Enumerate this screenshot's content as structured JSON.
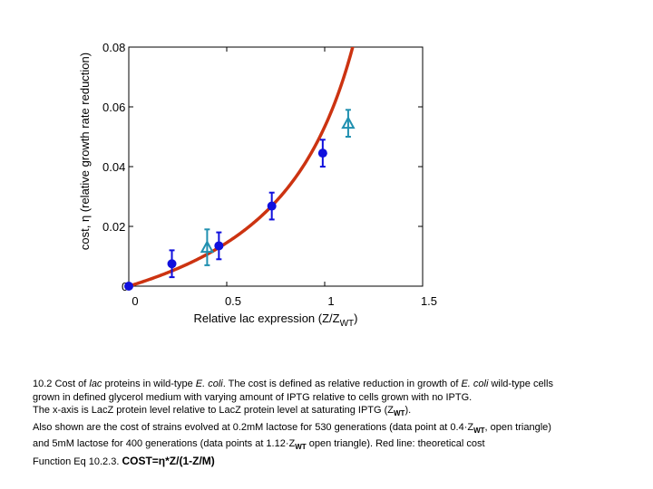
{
  "chart_data": {
    "type": "scatter",
    "title": "",
    "xlabel_main": "Relative lac expression (Z/Z",
    "xlabel_sub": "WT",
    "xlabel_end": ")",
    "ylabel": "cost, η (relative growth rate reduction)",
    "xlim": [
      0,
      1.5
    ],
    "ylim": [
      0,
      0.08
    ],
    "x_ticks": [
      "0",
      "0.5",
      "1",
      "1.5"
    ],
    "y_ticks": [
      "0",
      "0.02",
      "0.04",
      "0.06",
      "0.08"
    ],
    "grid": false,
    "series": [
      {
        "name": "wild-type",
        "marker": "circle",
        "color": "#1010dd",
        "points": [
          {
            "x": 0.0,
            "y": 0.0,
            "err": 0.0
          },
          {
            "x": 0.22,
            "y": 0.0075,
            "err": 0.0045
          },
          {
            "x": 0.46,
            "y": 0.0135,
            "err": 0.0045
          },
          {
            "x": 0.73,
            "y": 0.0268,
            "err": 0.0045
          },
          {
            "x": 0.99,
            "y": 0.0445,
            "err": 0.0045
          }
        ]
      },
      {
        "name": "evolved",
        "marker": "open-triangle",
        "color": "#2090b0",
        "points": [
          {
            "x": 0.4,
            "y": 0.013,
            "err": 0.006
          },
          {
            "x": 1.12,
            "y": 0.0545,
            "err": 0.0045
          }
        ]
      },
      {
        "name": "theoretical cost",
        "marker": "line",
        "color": "#cc3311",
        "formula": "eta*Z/(1-Z/M)",
        "params": {
          "eta": 0.02,
          "M": 1.6
        }
      }
    ]
  },
  "caption": {
    "l1_a": "10.2 Cost of ",
    "l1_b": "lac",
    "l1_c": " proteins in wild-type ",
    "l1_d": "E. coli",
    "l1_e": ".  The cost is defined as relative reduction in growth of ",
    "l1_f": "E. coli",
    "l1_g": " wild-type cells",
    "l2": "grown in defined glycerol medium with varying amount of IPTG relative to cells grown with no IPTG.",
    "l3_a": "The x-axis is LacZ protein level relative to LacZ protein level at saturating IPTG (Z",
    "l3_sub": "WT",
    "l3_b": ").",
    "l4_a": " Also shown are the cost of strains evolved at 0.2mM lactose for 530 generations (data point at 0.4·Z",
    "l4_sub": "WT",
    "l4_b": ", open triangle)",
    "l5_a": "and 5mM lactose for 400 generations (data points at 1.12·Z",
    "l5_sub": "WT",
    "l5_b": " open triangle). Red line: theoretical cost",
    "l6_a": "Function Eq 10.2.3. ",
    "formula": "COST=η*Z/(1-Z/M)"
  }
}
